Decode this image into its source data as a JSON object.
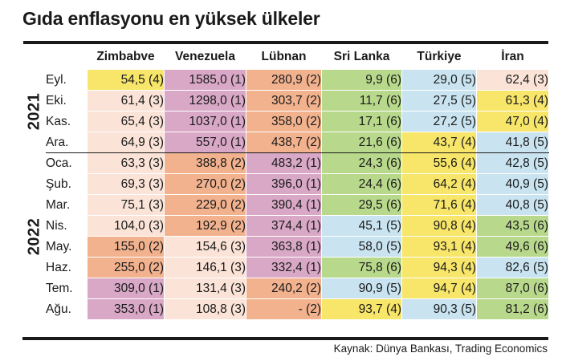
{
  "title": "Gıda enflasyonu en yüksek ülkeler",
  "source": "Kaynak: Dünya Bankası, Trading Economics",
  "rank_colors": {
    "1": "#d9a8c7",
    "2": "#f2b28e",
    "3": "#fbe4d7",
    "4": "#f7e66a",
    "5": "#c9e4f0",
    "6": "#b8d98c"
  },
  "chart_data": {
    "type": "table",
    "title": "Gıda enflasyonu en yüksek ülkeler",
    "columns": [
      "Zimbabve",
      "Venezuela",
      "Lübnan",
      "Sri Lanka",
      "Türkiye",
      "İran"
    ],
    "groups": [
      {
        "year": "2021",
        "rows": [
          {
            "month": "Eyl.",
            "cells": [
              {
                "text": "54,5 (4)",
                "value": 54.5,
                "rank": 4
              },
              {
                "text": "1585,0 (1)",
                "value": 1585.0,
                "rank": 1
              },
              {
                "text": "280,9 (2)",
                "value": 280.9,
                "rank": 2
              },
              {
                "text": "9,9 (6)",
                "value": 9.9,
                "rank": 6
              },
              {
                "text": "29,0 (5)",
                "value": 29.0,
                "rank": 5
              },
              {
                "text": "62,4 (3)",
                "value": 62.4,
                "rank": 3
              }
            ]
          },
          {
            "month": "Eki.",
            "cells": [
              {
                "text": "61,4 (3)",
                "value": 61.4,
                "rank": 3
              },
              {
                "text": "1298,0 (1)",
                "value": 1298.0,
                "rank": 1
              },
              {
                "text": "303,7 (2)",
                "value": 303.7,
                "rank": 2
              },
              {
                "text": "11,7 (6)",
                "value": 11.7,
                "rank": 6
              },
              {
                "text": "27,5 (5)",
                "value": 27.5,
                "rank": 5
              },
              {
                "text": "61,3 (4)",
                "value": 61.3,
                "rank": 4
              }
            ]
          },
          {
            "month": "Kas.",
            "cells": [
              {
                "text": "65,4 (3)",
                "value": 65.4,
                "rank": 3
              },
              {
                "text": "1037,0 (1)",
                "value": 1037.0,
                "rank": 1
              },
              {
                "text": "358,0 (2)",
                "value": 358.0,
                "rank": 2
              },
              {
                "text": "17,1 (6)",
                "value": 17.1,
                "rank": 6
              },
              {
                "text": "27,2 (5)",
                "value": 27.2,
                "rank": 5
              },
              {
                "text": "47,0 (4)",
                "value": 47.0,
                "rank": 4
              }
            ]
          },
          {
            "month": "Ara.",
            "cells": [
              {
                "text": "64,9 (3)",
                "value": 64.9,
                "rank": 3
              },
              {
                "text": "557,0 (1)",
                "value": 557.0,
                "rank": 1
              },
              {
                "text": "438,7 (2)",
                "value": 438.7,
                "rank": 2
              },
              {
                "text": "21,6 (6)",
                "value": 21.6,
                "rank": 6
              },
              {
                "text": "43,7 (4)",
                "value": 43.7,
                "rank": 4
              },
              {
                "text": "41,8 (5)",
                "value": 41.8,
                "rank": 5
              }
            ]
          }
        ]
      },
      {
        "year": "2022",
        "rows": [
          {
            "month": "Oca.",
            "cells": [
              {
                "text": "63,3 (3)",
                "value": 63.3,
                "rank": 3
              },
              {
                "text": "388,8 (2)",
                "value": 388.8,
                "rank": 2
              },
              {
                "text": "483,2 (1)",
                "value": 483.2,
                "rank": 1
              },
              {
                "text": "24,3 (6)",
                "value": 24.3,
                "rank": 6
              },
              {
                "text": "55,6 (4)",
                "value": 55.6,
                "rank": 4
              },
              {
                "text": "42,8 (5)",
                "value": 42.8,
                "rank": 5
              }
            ]
          },
          {
            "month": "Şub.",
            "cells": [
              {
                "text": "69,3 (3)",
                "value": 69.3,
                "rank": 3
              },
              {
                "text": "270,0 (2)",
                "value": 270.0,
                "rank": 2
              },
              {
                "text": "396,0 (1)",
                "value": 396.0,
                "rank": 1
              },
              {
                "text": "24,4 (6)",
                "value": 24.4,
                "rank": 6
              },
              {
                "text": "64,2 (4)",
                "value": 64.2,
                "rank": 4
              },
              {
                "text": "40,9 (5)",
                "value": 40.9,
                "rank": 5
              }
            ]
          },
          {
            "month": "Mar.",
            "cells": [
              {
                "text": "75,1 (3)",
                "value": 75.1,
                "rank": 3
              },
              {
                "text": "229,0 (2)",
                "value": 229.0,
                "rank": 2
              },
              {
                "text": "390,4 (1)",
                "value": 390.4,
                "rank": 1
              },
              {
                "text": "29,5 (6)",
                "value": 29.5,
                "rank": 6
              },
              {
                "text": "71,6 (4)",
                "value": 71.6,
                "rank": 4
              },
              {
                "text": "40,8 (5)",
                "value": 40.8,
                "rank": 5
              }
            ]
          },
          {
            "month": "Nis.",
            "cells": [
              {
                "text": "104,0 (3)",
                "value": 104.0,
                "rank": 3
              },
              {
                "text": "192,9 (2)",
                "value": 192.9,
                "rank": 2
              },
              {
                "text": "374,4 (1)",
                "value": 374.4,
                "rank": 1
              },
              {
                "text": "45,1 (5)",
                "value": 45.1,
                "rank": 5
              },
              {
                "text": "90,8 (4)",
                "value": 90.8,
                "rank": 4
              },
              {
                "text": "43,5 (6)",
                "value": 43.5,
                "rank": 6
              }
            ]
          },
          {
            "month": "May.",
            "cells": [
              {
                "text": "155,0 (2)",
                "value": 155.0,
                "rank": 2
              },
              {
                "text": "154,6 (3)",
                "value": 154.6,
                "rank": 3
              },
              {
                "text": "363,8 (1)",
                "value": 363.8,
                "rank": 1
              },
              {
                "text": "58,0 (5)",
                "value": 58.0,
                "rank": 5
              },
              {
                "text": "93,1 (4)",
                "value": 93.1,
                "rank": 4
              },
              {
                "text": "49,6 (6)",
                "value": 49.6,
                "rank": 6
              }
            ]
          },
          {
            "month": "Haz.",
            "cells": [
              {
                "text": "255,0 (2)",
                "value": 255.0,
                "rank": 2
              },
              {
                "text": "146,1 (3)",
                "value": 146.1,
                "rank": 3
              },
              {
                "text": "332,4 (1)",
                "value": 332.4,
                "rank": 1
              },
              {
                "text": "75,8 (6)",
                "value": 75.8,
                "rank": 6
              },
              {
                "text": "94,3 (4)",
                "value": 94.3,
                "rank": 4
              },
              {
                "text": "82,6 (5)",
                "value": 82.6,
                "rank": 5
              }
            ]
          },
          {
            "month": "Tem.",
            "cells": [
              {
                "text": "309,0 (1)",
                "value": 309.0,
                "rank": 1
              },
              {
                "text": "131,4 (3)",
                "value": 131.4,
                "rank": 3
              },
              {
                "text": "240,2 (2)",
                "value": 240.2,
                "rank": 2
              },
              {
                "text": "90,9 (5)",
                "value": 90.9,
                "rank": 5
              },
              {
                "text": "94,7 (4)",
                "value": 94.7,
                "rank": 4
              },
              {
                "text": "87,0 (6)",
                "value": 87.0,
                "rank": 6
              }
            ]
          },
          {
            "month": "Ağu.",
            "cells": [
              {
                "text": "353,0 (1)",
                "value": 353.0,
                "rank": 1
              },
              {
                "text": "108,8 (3)",
                "value": 108.8,
                "rank": 3
              },
              {
                "text": "- (2)",
                "value": null,
                "rank": 2
              },
              {
                "text": "93,7 (4)",
                "value": 93.7,
                "rank": 4
              },
              {
                "text": "90,3 (5)",
                "value": 90.3,
                "rank": 5
              },
              {
                "text": "81,2 (6)",
                "value": 81.2,
                "rank": 6
              }
            ]
          }
        ]
      }
    ]
  }
}
